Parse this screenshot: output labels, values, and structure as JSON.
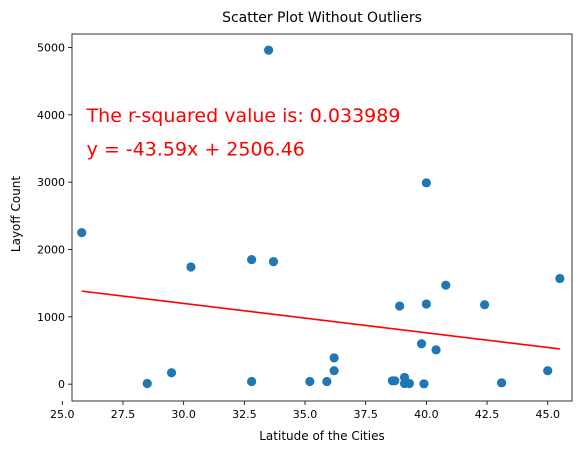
{
  "chart_data": {
    "type": "scatter",
    "title": "Scatter Plot Without Outliers",
    "xlabel": "Latitude of the Cities",
    "ylabel": "Layoff Count",
    "xlim": [
      25.4,
      46.0
    ],
    "ylim": [
      -250,
      5200
    ],
    "xticks": [
      25.0,
      27.5,
      30.0,
      32.5,
      35.0,
      37.5,
      40.0,
      42.5,
      45.0
    ],
    "xtick_labels": [
      "25.0",
      "27.5",
      "30.0",
      "32.5",
      "35.0",
      "37.5",
      "40.0",
      "42.5",
      "45.0"
    ],
    "yticks": [
      0,
      1000,
      2000,
      3000,
      4000,
      5000
    ],
    "ytick_labels": [
      "0",
      "1000",
      "2000",
      "3000",
      "4000",
      "5000"
    ],
    "grid": false,
    "point_color": "#1f77b4",
    "line_color": "#ff0000",
    "annotation_color": "#ff0000",
    "points": [
      {
        "x": 25.8,
        "y": 2250
      },
      {
        "x": 28.5,
        "y": 10
      },
      {
        "x": 29.5,
        "y": 170
      },
      {
        "x": 30.3,
        "y": 1740
      },
      {
        "x": 32.8,
        "y": 40
      },
      {
        "x": 32.8,
        "y": 1850
      },
      {
        "x": 33.5,
        "y": 4960
      },
      {
        "x": 33.7,
        "y": 1820
      },
      {
        "x": 35.2,
        "y": 40
      },
      {
        "x": 35.9,
        "y": 40
      },
      {
        "x": 36.2,
        "y": 200
      },
      {
        "x": 36.2,
        "y": 390
      },
      {
        "x": 38.6,
        "y": 50
      },
      {
        "x": 38.7,
        "y": 50
      },
      {
        "x": 38.9,
        "y": 1160
      },
      {
        "x": 39.1,
        "y": 10
      },
      {
        "x": 39.1,
        "y": 100
      },
      {
        "x": 39.3,
        "y": 10
      },
      {
        "x": 39.8,
        "y": 600
      },
      {
        "x": 39.9,
        "y": 5
      },
      {
        "x": 40.0,
        "y": 2990
      },
      {
        "x": 40.0,
        "y": 1190
      },
      {
        "x": 40.4,
        "y": 510
      },
      {
        "x": 40.8,
        "y": 1470
      },
      {
        "x": 42.4,
        "y": 1180
      },
      {
        "x": 43.1,
        "y": 20
      },
      {
        "x": 45.0,
        "y": 200
      },
      {
        "x": 45.5,
        "y": 1570
      }
    ],
    "regression": {
      "slope": -43.59,
      "intercept": 2506.46,
      "x_start": 25.8,
      "x_end": 45.5
    },
    "annotations": [
      {
        "text": "The r-squared value is: 0.033989",
        "x": 26.0,
        "y": 4000
      },
      {
        "text": "y = -43.59x + 2506.46",
        "x": 26.0,
        "y": 3500
      }
    ]
  }
}
